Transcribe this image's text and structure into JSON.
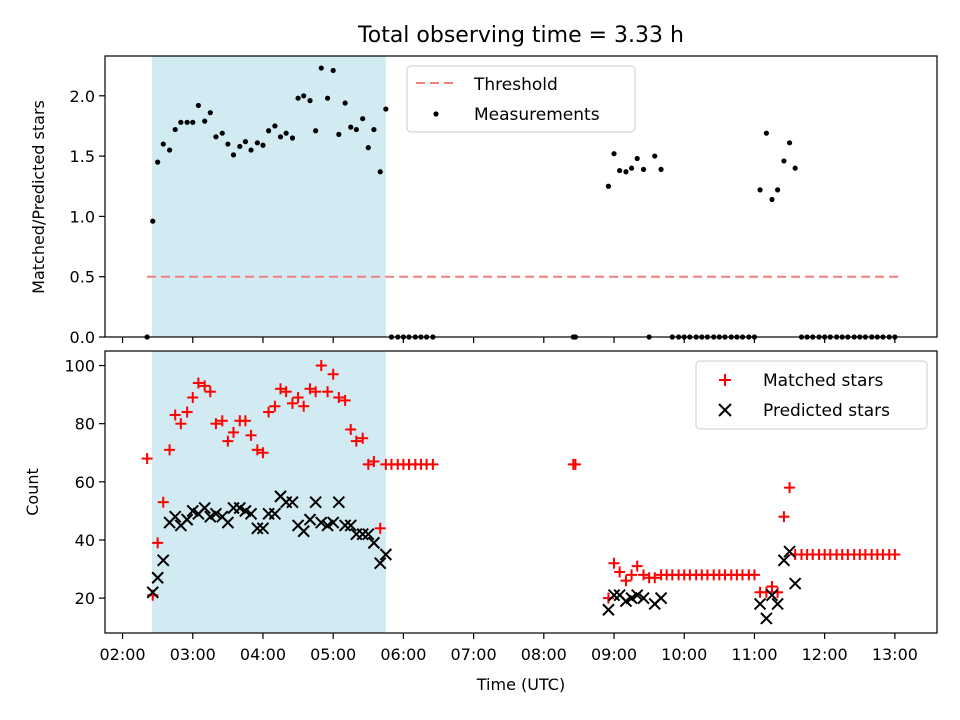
{
  "figure": {
    "title": "Total observing time = 3.33 h"
  },
  "colors": {
    "threshold": "#f08080",
    "measurement": "#000000",
    "matched": "#ff0000",
    "predicted": "#000000",
    "shade": "#add8e6"
  },
  "chart_data": [
    {
      "type": "scatter",
      "title": "Total observing time = 3.33 h",
      "xlabel": "",
      "ylabel": "Matched/Predicted stars",
      "xlim": [
        1.75,
        13.6
      ],
      "ylim": [
        0,
        2.33
      ],
      "yticks": [
        "0.0",
        "0.5",
        "1.0",
        "1.5",
        "2.0"
      ],
      "ytick_values": [
        0,
        0.5,
        1.0,
        1.5,
        2.0
      ],
      "grid": false,
      "legend_position": "upper center",
      "shaded_region": [
        2.42,
        5.75
      ],
      "threshold": {
        "name": "Threshold",
        "y": 0.5,
        "x": [
          2.35,
          13.05
        ],
        "style": "dashed"
      },
      "series": [
        {
          "name": "Measurements",
          "points": [
            [
              2.35,
              0.0
            ],
            [
              2.43,
              0.96
            ],
            [
              2.5,
              1.45
            ],
            [
              2.58,
              1.6
            ],
            [
              2.67,
              1.55
            ],
            [
              2.75,
              1.72
            ],
            [
              2.83,
              1.78
            ],
            [
              2.92,
              1.78
            ],
            [
              3.0,
              1.78
            ],
            [
              3.08,
              1.92
            ],
            [
              3.17,
              1.79
            ],
            [
              3.25,
              1.86
            ],
            [
              3.33,
              1.66
            ],
            [
              3.42,
              1.69
            ],
            [
              3.5,
              1.6
            ],
            [
              3.58,
              1.51
            ],
            [
              3.67,
              1.58
            ],
            [
              3.75,
              1.62
            ],
            [
              3.83,
              1.55
            ],
            [
              3.92,
              1.61
            ],
            [
              4.0,
              1.59
            ],
            [
              4.08,
              1.71
            ],
            [
              4.17,
              1.75
            ],
            [
              4.25,
              1.66
            ],
            [
              4.33,
              1.69
            ],
            [
              4.42,
              1.65
            ],
            [
              4.5,
              1.98
            ],
            [
              4.58,
              2.0
            ],
            [
              4.67,
              1.96
            ],
            [
              4.75,
              1.71
            ],
            [
              4.83,
              2.23
            ],
            [
              4.92,
              1.98
            ],
            [
              5.0,
              2.21
            ],
            [
              5.08,
              1.68
            ],
            [
              5.17,
              1.94
            ],
            [
              5.25,
              1.74
            ],
            [
              5.33,
              1.72
            ],
            [
              5.42,
              1.81
            ],
            [
              5.5,
              1.57
            ],
            [
              5.58,
              1.72
            ],
            [
              5.67,
              1.37
            ],
            [
              5.75,
              1.89
            ],
            [
              5.83,
              0.0
            ],
            [
              5.92,
              0.0
            ],
            [
              6.0,
              0.0
            ],
            [
              6.08,
              0.0
            ],
            [
              6.17,
              0.0
            ],
            [
              6.25,
              0.0
            ],
            [
              6.33,
              0.0
            ],
            [
              6.42,
              0.0
            ],
            [
              8.42,
              0.0
            ],
            [
              8.45,
              0.0
            ],
            [
              8.92,
              1.25
            ],
            [
              9.0,
              1.52
            ],
            [
              9.08,
              1.38
            ],
            [
              9.17,
              1.37
            ],
            [
              9.25,
              1.4
            ],
            [
              9.33,
              1.48
            ],
            [
              9.42,
              1.39
            ],
            [
              9.58,
              1.5
            ],
            [
              9.67,
              1.39
            ],
            [
              9.5,
              0.0
            ],
            [
              9.83,
              0.0
            ],
            [
              9.92,
              0.0
            ],
            [
              10.0,
              0.0
            ],
            [
              10.08,
              0.0
            ],
            [
              10.17,
              0.0
            ],
            [
              10.25,
              0.0
            ],
            [
              10.33,
              0.0
            ],
            [
              10.42,
              0.0
            ],
            [
              10.5,
              0.0
            ],
            [
              10.58,
              0.0
            ],
            [
              10.67,
              0.0
            ],
            [
              10.75,
              0.0
            ],
            [
              10.83,
              0.0
            ],
            [
              10.92,
              0.0
            ],
            [
              11.0,
              0.0
            ],
            [
              11.08,
              1.22
            ],
            [
              11.17,
              1.69
            ],
            [
              11.25,
              1.14
            ],
            [
              11.33,
              1.22
            ],
            [
              11.42,
              1.46
            ],
            [
              11.5,
              1.61
            ],
            [
              11.58,
              1.4
            ],
            [
              11.67,
              0.0
            ],
            [
              11.75,
              0.0
            ],
            [
              11.83,
              0.0
            ],
            [
              11.92,
              0.0
            ],
            [
              12.0,
              0.0
            ],
            [
              12.08,
              0.0
            ],
            [
              12.17,
              0.0
            ],
            [
              12.25,
              0.0
            ],
            [
              12.33,
              0.0
            ],
            [
              12.42,
              0.0
            ],
            [
              12.5,
              0.0
            ],
            [
              12.58,
              0.0
            ],
            [
              12.67,
              0.0
            ],
            [
              12.75,
              0.0
            ],
            [
              12.83,
              0.0
            ],
            [
              12.92,
              0.0
            ],
            [
              13.0,
              0.0
            ]
          ]
        }
      ]
    },
    {
      "type": "scatter",
      "title": "",
      "xlabel": "Time (UTC)",
      "ylabel": "Count",
      "xlim": [
        1.75,
        13.6
      ],
      "ylim": [
        8,
        105
      ],
      "yticks": [
        "20",
        "40",
        "60",
        "80",
        "100"
      ],
      "ytick_values": [
        20,
        40,
        60,
        80,
        100
      ],
      "xticks": [
        "02:00",
        "03:00",
        "04:00",
        "05:00",
        "06:00",
        "07:00",
        "08:00",
        "09:00",
        "10:00",
        "11:00",
        "12:00",
        "13:00"
      ],
      "xtick_values": [
        2,
        3,
        4,
        5,
        6,
        7,
        8,
        9,
        10,
        11,
        12,
        13
      ],
      "grid": false,
      "legend_position": "upper right",
      "shaded_region": [
        2.42,
        5.75
      ],
      "series": [
        {
          "name": "Matched stars",
          "marker": "+",
          "points": [
            [
              2.35,
              68
            ],
            [
              2.43,
              21
            ],
            [
              2.5,
              39
            ],
            [
              2.58,
              53
            ],
            [
              2.67,
              71
            ],
            [
              2.75,
              83
            ],
            [
              2.83,
              80
            ],
            [
              2.92,
              84
            ],
            [
              3.0,
              89
            ],
            [
              3.08,
              94
            ],
            [
              3.17,
              93
            ],
            [
              3.25,
              91
            ],
            [
              3.33,
              80
            ],
            [
              3.42,
              81
            ],
            [
              3.5,
              74
            ],
            [
              3.58,
              77
            ],
            [
              3.67,
              81
            ],
            [
              3.75,
              81
            ],
            [
              3.83,
              76
            ],
            [
              3.92,
              71
            ],
            [
              4.0,
              70
            ],
            [
              4.08,
              84
            ],
            [
              4.17,
              86
            ],
            [
              4.25,
              92
            ],
            [
              4.33,
              91
            ],
            [
              4.42,
              87
            ],
            [
              4.5,
              89
            ],
            [
              4.58,
              86
            ],
            [
              4.67,
              92
            ],
            [
              4.75,
              91
            ],
            [
              4.83,
              100
            ],
            [
              4.92,
              91
            ],
            [
              5.0,
              97
            ],
            [
              5.08,
              89
            ],
            [
              5.17,
              88
            ],
            [
              5.25,
              78
            ],
            [
              5.33,
              74
            ],
            [
              5.42,
              75
            ],
            [
              5.5,
              66
            ],
            [
              5.58,
              67
            ],
            [
              5.67,
              44
            ],
            [
              5.75,
              66
            ],
            [
              5.83,
              66
            ],
            [
              5.92,
              66
            ],
            [
              6.0,
              66
            ],
            [
              6.08,
              66
            ],
            [
              6.17,
              66
            ],
            [
              6.25,
              66
            ],
            [
              6.33,
              66
            ],
            [
              6.42,
              66
            ],
            [
              8.42,
              66
            ],
            [
              8.45,
              66
            ],
            [
              8.92,
              20
            ],
            [
              9.0,
              32
            ],
            [
              9.08,
              29
            ],
            [
              9.17,
              26
            ],
            [
              9.25,
              28
            ],
            [
              9.33,
              31
            ],
            [
              9.42,
              28
            ],
            [
              9.5,
              27
            ],
            [
              9.58,
              27
            ],
            [
              9.67,
              28
            ],
            [
              9.75,
              28
            ],
            [
              9.83,
              28
            ],
            [
              9.92,
              28
            ],
            [
              10.0,
              28
            ],
            [
              10.08,
              28
            ],
            [
              10.17,
              28
            ],
            [
              10.25,
              28
            ],
            [
              10.33,
              28
            ],
            [
              10.42,
              28
            ],
            [
              10.5,
              28
            ],
            [
              10.58,
              28
            ],
            [
              10.67,
              28
            ],
            [
              10.75,
              28
            ],
            [
              10.83,
              28
            ],
            [
              10.92,
              28
            ],
            [
              11.0,
              28
            ],
            [
              11.08,
              22
            ],
            [
              11.17,
              22
            ],
            [
              11.25,
              24
            ],
            [
              11.33,
              22
            ],
            [
              11.42,
              48
            ],
            [
              11.5,
              58
            ],
            [
              11.58,
              35
            ],
            [
              11.67,
              35
            ],
            [
              11.75,
              35
            ],
            [
              11.83,
              35
            ],
            [
              11.92,
              35
            ],
            [
              12.0,
              35
            ],
            [
              12.08,
              35
            ],
            [
              12.17,
              35
            ],
            [
              12.25,
              35
            ],
            [
              12.33,
              35
            ],
            [
              12.42,
              35
            ],
            [
              12.5,
              35
            ],
            [
              12.58,
              35
            ],
            [
              12.67,
              35
            ],
            [
              12.75,
              35
            ],
            [
              12.83,
              35
            ],
            [
              12.92,
              35
            ],
            [
              13.0,
              35
            ]
          ]
        },
        {
          "name": "Predicted stars",
          "marker": "x",
          "points": [
            [
              2.43,
              22
            ],
            [
              2.5,
              27
            ],
            [
              2.58,
              33
            ],
            [
              2.67,
              46
            ],
            [
              2.75,
              48
            ],
            [
              2.83,
              45
            ],
            [
              2.92,
              47
            ],
            [
              3.0,
              50
            ],
            [
              3.08,
              49
            ],
            [
              3.17,
              51
            ],
            [
              3.25,
              48
            ],
            [
              3.33,
              49
            ],
            [
              3.42,
              48
            ],
            [
              3.5,
              46
            ],
            [
              3.58,
              51
            ],
            [
              3.67,
              51
            ],
            [
              3.75,
              50
            ],
            [
              3.83,
              49
            ],
            [
              3.92,
              44
            ],
            [
              4.0,
              44
            ],
            [
              4.08,
              49
            ],
            [
              4.17,
              49
            ],
            [
              4.25,
              55
            ],
            [
              4.33,
              53
            ],
            [
              4.42,
              53
            ],
            [
              4.5,
              45
            ],
            [
              4.58,
              43
            ],
            [
              4.67,
              47
            ],
            [
              4.75,
              53
            ],
            [
              4.83,
              46
            ],
            [
              4.92,
              45
            ],
            [
              5.0,
              46
            ],
            [
              5.08,
              53
            ],
            [
              5.17,
              45
            ],
            [
              5.25,
              45
            ],
            [
              5.33,
              42
            ],
            [
              5.42,
              42
            ],
            [
              5.5,
              42
            ],
            [
              5.58,
              39
            ],
            [
              5.67,
              32
            ],
            [
              5.75,
              35
            ],
            [
              8.92,
              16
            ],
            [
              9.0,
              21
            ],
            [
              9.08,
              21
            ],
            [
              9.17,
              19
            ],
            [
              9.25,
              20
            ],
            [
              9.33,
              21
            ],
            [
              9.42,
              20
            ],
            [
              9.58,
              18
            ],
            [
              9.67,
              20
            ],
            [
              11.08,
              18
            ],
            [
              11.17,
              13
            ],
            [
              11.25,
              21
            ],
            [
              11.33,
              18
            ],
            [
              11.42,
              33
            ],
            [
              11.5,
              36
            ],
            [
              11.58,
              25
            ]
          ]
        }
      ]
    }
  ]
}
